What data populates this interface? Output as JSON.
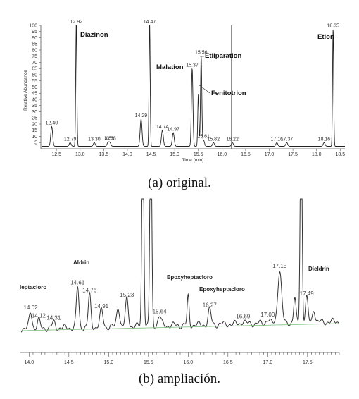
{
  "chart_data": [
    {
      "type": "line",
      "xlabel": "Time (min)",
      "ylabel": "Relative Abundance",
      "xlim": [
        12.2,
        18.6
      ],
      "ylim": [
        0,
        100
      ],
      "x_ticks": [
        12.5,
        13.0,
        13.5,
        14.0,
        14.5,
        15.0,
        15.5,
        16.0,
        16.5,
        17.0,
        17.5,
        18.0,
        18.5
      ],
      "y_ticks": [
        5,
        10,
        15,
        20,
        25,
        30,
        35,
        40,
        45,
        50,
        55,
        60,
        65,
        70,
        75,
        80,
        85,
        90,
        95,
        100
      ],
      "baseline": 2,
      "peaks": [
        {
          "rt": 12.4,
          "label": "12.40",
          "height": 16,
          "width": 0.02
        },
        {
          "rt": 12.79,
          "label": "12.79",
          "height": 3,
          "width": 0.02
        },
        {
          "rt": 12.92,
          "label": "12.92",
          "height": 100,
          "width": 0.012
        },
        {
          "rt": 13.3,
          "label": "13.30",
          "height": 3,
          "width": 0.02
        },
        {
          "rt": 13.59,
          "label": "13.59",
          "height": 3,
          "width": 0.02
        },
        {
          "rt": 13.63,
          "label": "13.63",
          "height": 3,
          "width": 0.02
        },
        {
          "rt": 14.29,
          "label": "14.29",
          "height": 22,
          "width": 0.02
        },
        {
          "rt": 14.47,
          "label": "14.47",
          "height": 100,
          "width": 0.012
        },
        {
          "rt": 14.74,
          "label": "14.74",
          "height": 13,
          "width": 0.02
        },
        {
          "rt": 14.97,
          "label": "14.97",
          "height": 11,
          "width": 0.02
        },
        {
          "rt": 15.37,
          "label": "15.37",
          "height": 63,
          "width": 0.016
        },
        {
          "rt": 15.5,
          "label": "",
          "height": 42,
          "width": 0.012
        },
        {
          "rt": 15.56,
          "label": "15.56",
          "height": 73,
          "width": 0.014
        },
        {
          "rt": 15.61,
          "label": "15.61",
          "height": 5,
          "width": 0.02
        },
        {
          "rt": 15.82,
          "label": "15.82",
          "height": 3,
          "width": 0.02
        },
        {
          "rt": 16.22,
          "label": "16.22",
          "height": 3,
          "width": 0.02
        },
        {
          "rt": 17.16,
          "label": "17.16",
          "height": 3,
          "width": 0.02
        },
        {
          "rt": 17.37,
          "label": "17.37",
          "height": 3,
          "width": 0.02
        },
        {
          "rt": 18.16,
          "label": "18.16",
          "height": 3,
          "width": 0.02
        },
        {
          "rt": 18.35,
          "label": "18.35",
          "height": 95,
          "width": 0.012
        }
      ],
      "marker_line_rt": 16.2,
      "compounds": [
        {
          "name": "Diazinon",
          "rt": 12.92
        },
        {
          "name": "Malation",
          "rt": 15.37
        },
        {
          "name": "Etilparation",
          "rt": 15.56
        },
        {
          "name": "Fenitotrion",
          "rt": 15.5
        },
        {
          "name": "Etion",
          "rt": 18.35
        }
      ],
      "caption": "(a) original."
    },
    {
      "type": "line",
      "xlim": [
        13.9,
        17.9
      ],
      "x_ticks": [
        14.0,
        14.5,
        15.0,
        15.5,
        16.0,
        16.5,
        17.0,
        17.5
      ],
      "grid": false,
      "peaks": [
        {
          "rt": 14.02,
          "label": "14.02",
          "height": 12,
          "width": 0.018
        },
        {
          "rt": 14.12,
          "label": "14.12",
          "height": 6,
          "width": 0.018
        },
        {
          "rt": 14.31,
          "label": "14.31",
          "height": 4,
          "width": 0.02
        },
        {
          "rt": 14.61,
          "label": "14.61",
          "height": 30,
          "width": 0.016
        },
        {
          "rt": 14.76,
          "label": "14.76",
          "height": 24,
          "width": 0.016
        },
        {
          "rt": 14.91,
          "label": "14.91",
          "height": 12,
          "width": 0.02
        },
        {
          "rt": 15.12,
          "label": "",
          "height": 15,
          "width": 0.018
        },
        {
          "rt": 15.23,
          "label": "15.23",
          "height": 20,
          "width": 0.018
        },
        {
          "rt": 15.43,
          "label": "",
          "height": 160,
          "width": 0.012
        },
        {
          "rt": 15.53,
          "label": "",
          "height": 160,
          "width": 0.012
        },
        {
          "rt": 15.64,
          "label": "15.64",
          "height": 7,
          "width": 0.02
        },
        {
          "rt": 16.0,
          "label": "",
          "height": 21,
          "width": 0.012
        },
        {
          "rt": 16.27,
          "label": "16.27",
          "height": 11,
          "width": 0.018
        },
        {
          "rt": 16.69,
          "label": "16.69",
          "height": 2,
          "width": 0.02
        },
        {
          "rt": 17.0,
          "label": "17.00",
          "height": 3,
          "width": 0.02
        },
        {
          "rt": 17.15,
          "label": "17.15",
          "height": 39,
          "width": 0.024
        },
        {
          "rt": 17.34,
          "label": "",
          "height": 18,
          "width": 0.014
        },
        {
          "rt": 17.42,
          "label": "",
          "height": 160,
          "width": 0.012
        },
        {
          "rt": 17.49,
          "label": "17.49",
          "height": 18,
          "width": 0.016
        },
        {
          "rt": 17.58,
          "label": "",
          "height": 10,
          "width": 0.016
        }
      ],
      "compounds": [
        {
          "name": "leptacloro",
          "rt": 14.02
        },
        {
          "name": "Aldrin",
          "rt": 14.76
        },
        {
          "name": "Epoxyheptacloro",
          "rt": 16.0
        },
        {
          "name": "Epoxyheptacloro",
          "rt": 16.27
        },
        {
          "name": "Dieldrin",
          "rt": 17.49
        }
      ],
      "caption": "(b) ampliación."
    }
  ]
}
